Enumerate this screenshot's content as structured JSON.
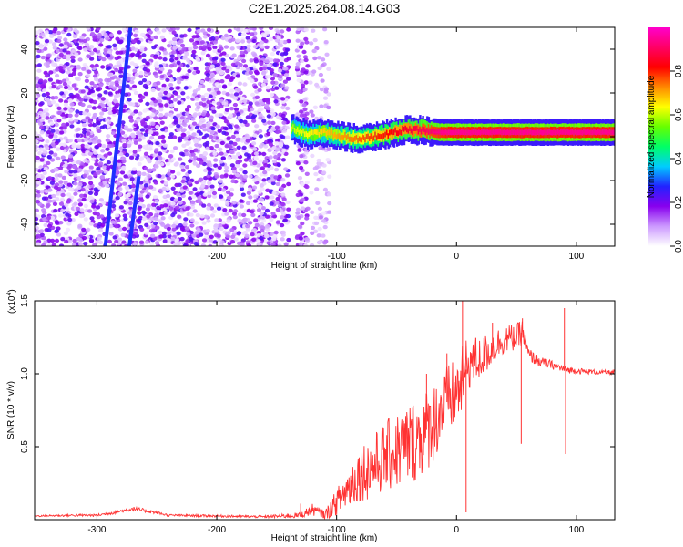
{
  "title": "C2E1.2025.264.08.14.G03",
  "chart_data": [
    {
      "type": "heatmap",
      "xlabel": "Height of straight line (km)",
      "ylabel": "Frequency (Hz)",
      "xlim": [
        -352,
        132
      ],
      "ylim": [
        -50,
        50
      ],
      "xticks": [
        -300,
        -200,
        -100,
        0,
        100
      ],
      "xtick_labels": [
        "-300",
        "-200",
        "-100",
        "0",
        "100"
      ],
      "yticks": [
        40,
        20,
        0,
        -20,
        -40
      ],
      "ytick_labels": [
        "40",
        "20",
        "0",
        "-20",
        "-40"
      ],
      "grid": false,
      "noise_region_x": [
        -352,
        -140
      ],
      "transition_region_x": [
        -140,
        -105
      ],
      "signal_track": [
        {
          "x": -138,
          "y": 4
        },
        {
          "x": -125,
          "y": 1
        },
        {
          "x": -110,
          "y": 2
        },
        {
          "x": -95,
          "y": 0
        },
        {
          "x": -80,
          "y": -1
        },
        {
          "x": -60,
          "y": 1
        },
        {
          "x": -45,
          "y": 3
        },
        {
          "x": -30,
          "y": 3
        },
        {
          "x": -15,
          "y": 2
        },
        {
          "x": 0,
          "y": 2
        },
        {
          "x": 40,
          "y": 2
        },
        {
          "x": 80,
          "y": 2
        },
        {
          "x": 95,
          "y": 2
        },
        {
          "x": 132,
          "y": 2
        }
      ],
      "diagonal_streaks": [
        {
          "x_start": -293,
          "y_start": -50,
          "x_end": -272,
          "y_end": 50
        },
        {
          "x_start": -273,
          "y_start": -50,
          "x_end": -265,
          "y_end": -18
        }
      ],
      "colorbar": {
        "label": "Normalized spectral amplitude",
        "range": [
          0,
          1
        ],
        "ticks": [
          0.0,
          0.2,
          0.4,
          0.6,
          0.8
        ],
        "tick_labels": [
          "0.0",
          "0.2",
          "0.4",
          "0.6",
          "0.8"
        ],
        "colors": [
          "#ffffff",
          "#cc99ff",
          "#8800ee",
          "#2222ff",
          "#00ccff",
          "#00ff66",
          "#66ff00",
          "#ffff00",
          "#ff8800",
          "#ff0000",
          "#ff0066",
          "#ff00cc"
        ]
      }
    },
    {
      "type": "line",
      "xlabel": "Height of straight line (km)",
      "ylabel": "SNR (10 * v/v)",
      "y_multiplier_label": "(x10",
      "y_multiplier_exp": "4",
      "y_multiplier_close": ")",
      "xlim": [
        -352,
        132
      ],
      "ylim": [
        0,
        15000
      ],
      "xticks": [
        -300,
        -200,
        -100,
        0,
        100
      ],
      "xtick_labels": [
        "-300",
        "-200",
        "-100",
        "0",
        "100"
      ],
      "yticks": [
        5000,
        10000,
        15000
      ],
      "ytick_labels": [
        "0.5",
        "1.0",
        "1.5"
      ],
      "grid": false,
      "series": [
        {
          "color": "#ff3333",
          "x": [
            -352,
            -320,
            -300,
            -285,
            -270,
            -255,
            -240,
            -200,
            -160,
            -130,
            -120,
            -110,
            -100,
            -90,
            -80,
            -70,
            -60,
            -50,
            -40,
            -30,
            -20,
            -10,
            0,
            5,
            10,
            20,
            30,
            40,
            50,
            55,
            60,
            70,
            80,
            90,
            100,
            110,
            120,
            132
          ],
          "y": [
            250,
            300,
            300,
            500,
            750,
            550,
            300,
            250,
            200,
            300,
            700,
            300,
            1200,
            2200,
            3300,
            3600,
            4300,
            4700,
            5200,
            5700,
            6600,
            7900,
            8700,
            9500,
            10800,
            11000,
            11800,
            12400,
            12500,
            12900,
            11300,
            10800,
            10600,
            10300,
            10200,
            10150,
            10100,
            10100
          ],
          "noise_envelope": [
            50,
            80,
            80,
            120,
            150,
            120,
            80,
            80,
            80,
            200,
            400,
            300,
            900,
            1500,
            2000,
            2200,
            2400,
            2700,
            2900,
            2900,
            2800,
            2600,
            2400,
            2400,
            2000,
            1500,
            1200,
            1000,
            900,
            900,
            500,
            350,
            300,
            250,
            200,
            180,
            150,
            150
          ],
          "spikes": [
            {
              "x": -130,
              "y": 1100
            },
            {
              "x": -25,
              "y": 10000
            },
            {
              "x": -8,
              "y": 11400
            },
            {
              "x": 5,
              "y": 15000
            },
            {
              "x": 8,
              "y": 500
            },
            {
              "x": 30,
              "y": 13500
            },
            {
              "x": 55,
              "y": 13800
            },
            {
              "x": 54,
              "y": 5200
            },
            {
              "x": 90,
              "y": 14500
            },
            {
              "x": 91,
              "y": 4500
            }
          ]
        }
      ]
    }
  ]
}
